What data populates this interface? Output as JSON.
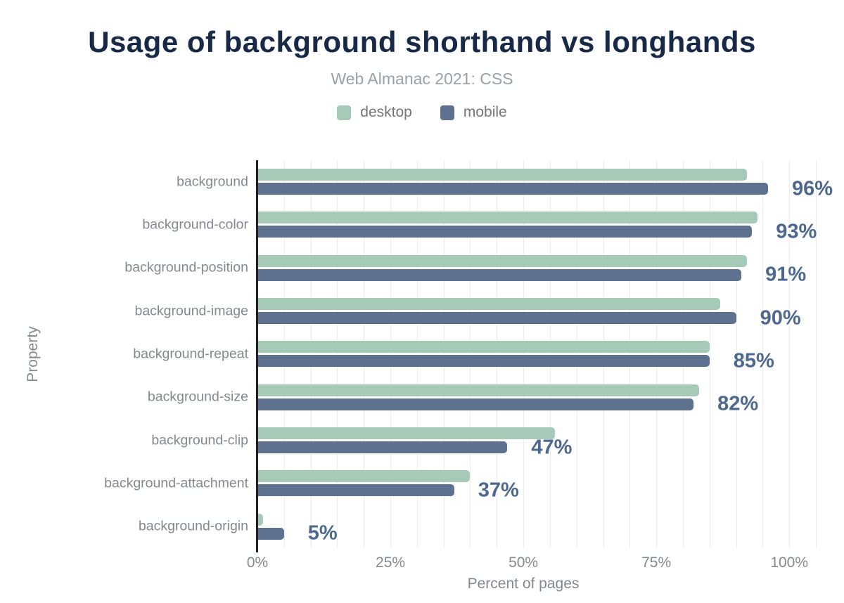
{
  "header": {
    "title": "Usage of background shorthand vs longhands",
    "subtitle": "Web Almanac 2021: CSS"
  },
  "chart_data": {
    "type": "bar",
    "orientation": "horizontal",
    "title": "Usage of background shorthand vs longhands",
    "subtitle": "Web Almanac 2021: CSS",
    "xlabel": "Percent of pages",
    "ylabel": "Property",
    "categories": [
      "background",
      "background-color",
      "background-position",
      "background-image",
      "background-repeat",
      "background-size",
      "background-clip",
      "background-attachment",
      "background-origin"
    ],
    "series": [
      {
        "name": "desktop",
        "color": "#a5cab8",
        "values": [
          92,
          94,
          92,
          87,
          85,
          83,
          56,
          40,
          1
        ]
      },
      {
        "name": "mobile",
        "color": "#5e718e",
        "values": [
          96,
          93,
          91,
          90,
          85,
          82,
          47,
          37,
          5
        ]
      }
    ],
    "data_labels": [
      "96%",
      "93%",
      "91%",
      "90%",
      "85%",
      "82%",
      "47%",
      "37%",
      "5%"
    ],
    "data_label_series": "mobile",
    "xticks": [
      {
        "value": 0,
        "label": "0%"
      },
      {
        "value": 25,
        "label": "25%"
      },
      {
        "value": 50,
        "label": "50%"
      },
      {
        "value": 75,
        "label": "75%"
      },
      {
        "value": 100,
        "label": "100%"
      }
    ],
    "xlim": [
      0,
      105
    ],
    "grid": {
      "axis": "x",
      "step": 5
    },
    "legend_position": "top"
  },
  "colors": {
    "page_bg": "#ffffff",
    "title": "#182947",
    "subtitle": "#9aa0a6",
    "muted": "#85898d",
    "legend_label": "#757575",
    "data_label": "#4d6890",
    "grid": "#ededed",
    "axis": "#212121"
  }
}
